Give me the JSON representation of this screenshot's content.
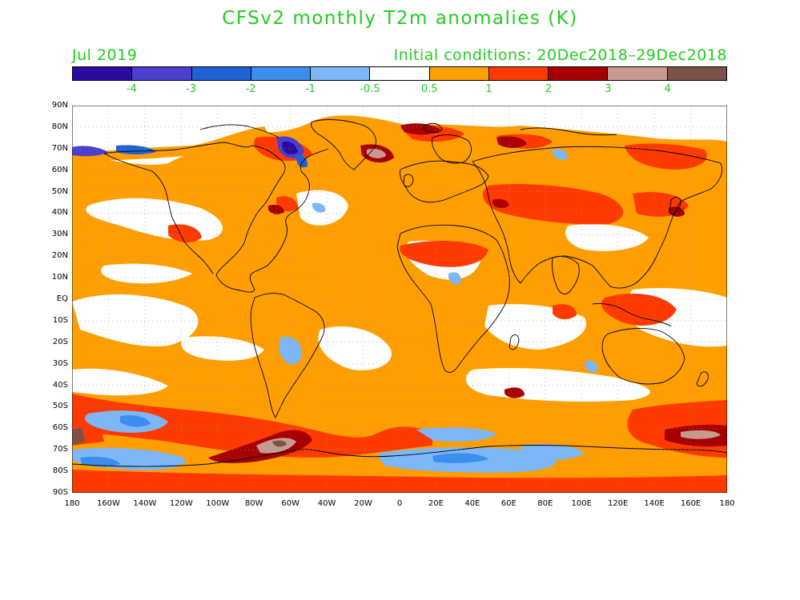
{
  "title": "CFSv2 monthly T2m anomalies (K)",
  "valid_month": "Jul 2019",
  "initial_conditions": "Initial conditions: 20Dec2018–29Dec2018",
  "colorbar": {
    "colors": [
      "#2a0aa0",
      "#4a3fd0",
      "#1f62d8",
      "#3b8ef0",
      "#7db7f8",
      "#ffffff",
      "#ff9e00",
      "#ff3a00",
      "#a80000",
      "#c79a90",
      "#7c5248"
    ],
    "labels": [
      "-4",
      "-3",
      "-2",
      "-1",
      "-0.5",
      "0.5",
      "1",
      "2",
      "3",
      "4"
    ]
  },
  "lat_labels": [
    "90N",
    "80N",
    "70N",
    "60N",
    "50N",
    "40N",
    "30N",
    "20N",
    "10N",
    "EQ",
    "10S",
    "20S",
    "30S",
    "40S",
    "50S",
    "60S",
    "70S",
    "80S",
    "90S"
  ],
  "lon_labels": [
    "180",
    "160W",
    "140W",
    "120W",
    "100W",
    "80W",
    "60W",
    "40W",
    "20W",
    "0",
    "20E",
    "40E",
    "60E",
    "80E",
    "100E",
    "120E",
    "140E",
    "160E",
    "180"
  ],
  "anomaly_colors": {
    "orange": "#ff9e00",
    "red": "#ff3a00",
    "darkred": "#a80000",
    "pink": "#c79a90",
    "brown": "#7c5248",
    "lightblue": "#7db7f8",
    "blue": "#3b8ef0",
    "medblue": "#1f62d8",
    "indigo": "#4a3fd0",
    "violet": "#2a0aa0"
  }
}
